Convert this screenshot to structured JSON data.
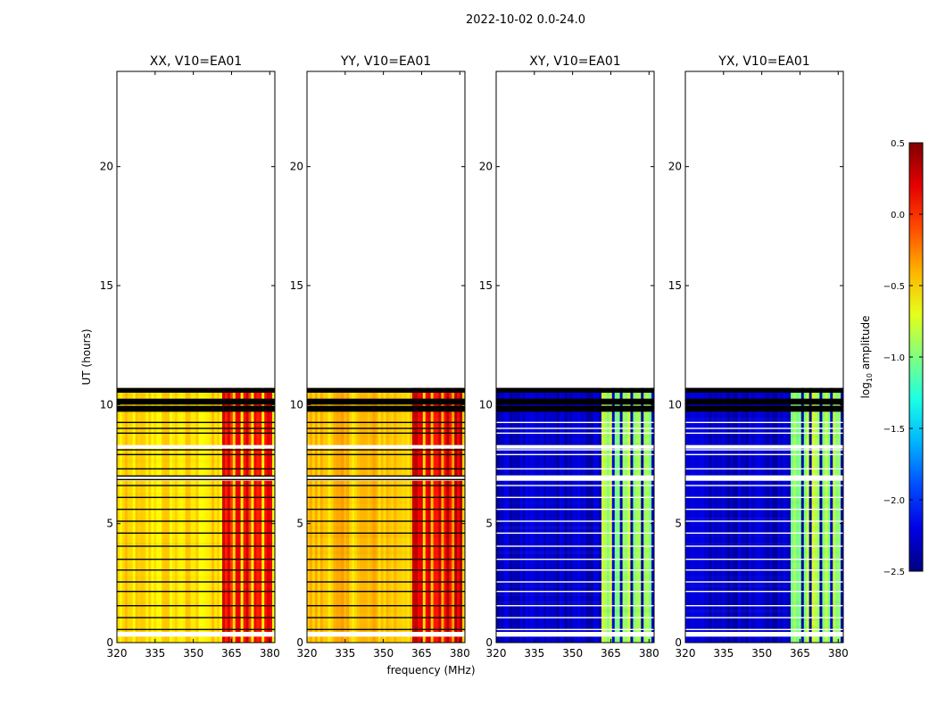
{
  "figure": {
    "suptitle": "2022-10-02 0.0-24.0",
    "xlabel": "frequency (MHz)",
    "ylabel": "UT (hours)"
  },
  "chart_data": {
    "type": "heatmap",
    "xlim": [
      320,
      382
    ],
    "ylim": [
      0,
      24
    ],
    "xticks": [
      320,
      335,
      350,
      365,
      380
    ],
    "yticks": [
      0,
      5,
      10,
      15,
      20
    ],
    "data_end_hours": 10.7,
    "rfi_band_edges_mhz": [
      361,
      365,
      366,
      369,
      370,
      373,
      374,
      377,
      378,
      381
    ],
    "panels": [
      {
        "id": "xx",
        "title": "XX, V10=EA01",
        "base_log_amp": -0.55,
        "rfi_log_amp": 0.1
      },
      {
        "id": "yy",
        "title": "YY, V10=EA01",
        "base_log_amp": -0.45,
        "rfi_log_amp": 0.2
      },
      {
        "id": "xy",
        "title": "XY, V10=EA01",
        "base_log_amp": -2.3,
        "rfi_log_amp": -0.9
      },
      {
        "id": "yx",
        "title": "YX, V10=EA01",
        "base_log_amp": -2.3,
        "rfi_log_amp": -0.9
      }
    ],
    "colorbar": {
      "label": "log",
      "label_sub": "10",
      "label_rest": " amplitude",
      "range": [
        -2.5,
        0.5
      ],
      "ticks": [
        "0.5",
        "0.0",
        "−0.5",
        "−1.0",
        "−1.5",
        "−2.0",
        "−2.5"
      ],
      "colormap": "jet"
    }
  }
}
